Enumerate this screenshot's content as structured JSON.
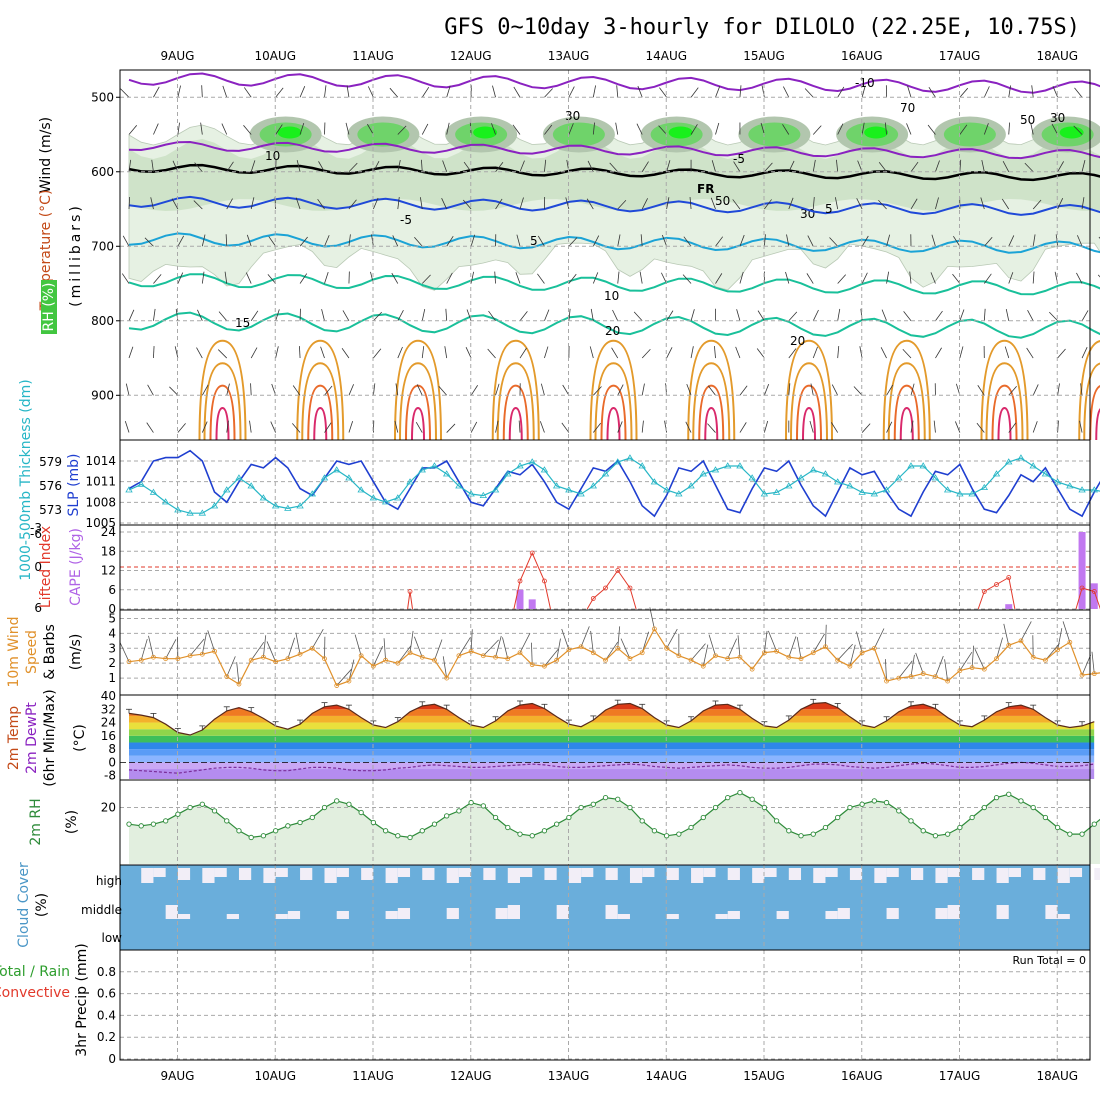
{
  "title": "GFS 0~10day 3-hourly for DILOLO (22.25E, 10.75S)",
  "date_labels": [
    "9AUG",
    "10AUG",
    "11AUG",
    "12AUG",
    "13AUG",
    "14AUG",
    "15AUG",
    "16AUG",
    "17AUG",
    "18AUG"
  ],
  "colors": {
    "rh_light": "#e6f1e3",
    "rh_mid": "#cfe3c9",
    "rh_dark": "#b2c6ae",
    "rh_green": "#6fd36a",
    "rh_bright": "#19f01c",
    "freezing": "#000000",
    "temp_purple": "#8a22c0",
    "temp_blue": "#1f49d8",
    "temp_cyan": "#1ba3d6",
    "temp_teal": "#19c09a",
    "temp_orange": "#e39a2b",
    "temp_red": "#d9296b",
    "slp": "#1f3fd0",
    "thickness": "#27b6c6",
    "cape": "#c178f0",
    "lifted": "#e2392b",
    "wind10": "#e0912b",
    "rh2m": "#2e8b3a",
    "cloud": "#6aaedb",
    "cloud_gap": "#f2eef7"
  },
  "chart_data": [
    {
      "panel": "upper-air",
      "type": "heatmap",
      "ylabel_parts": [
        "Wind (m/s)",
        "Temperature (°C)",
        "RH (%)",
        "(millibars)"
      ],
      "ylim": [
        960,
        450
      ],
      "yticks": [
        500,
        600,
        700,
        800,
        900
      ],
      "isotherm_labels": [
        "-10",
        "-5",
        "-5",
        "5",
        "5",
        "10",
        "15",
        "20",
        "20",
        "20"
      ],
      "freezing_label": "FR",
      "rh_contour_labels": [
        "10",
        "30",
        "30",
        "50",
        "50",
        "70",
        "30"
      ]
    },
    {
      "panel": "slp-thickness",
      "type": "line",
      "ylabel_left": "1000-500mb Thickness (dm)",
      "ylabel_right": "SLP (mb)",
      "thickness_ticks": [
        573,
        576,
        579
      ],
      "slp_ticks": [
        1005,
        1008,
        1011,
        1014
      ],
      "series": [
        {
          "name": "SLP (mb)",
          "values": [
            1010.0,
            1011.0,
            1014.0,
            1014.5,
            1014.5,
            1015.5,
            1014.0,
            1009.5,
            1008.0,
            1011.0,
            1013.5,
            1013.0,
            1014.5,
            1013.0,
            1010.0,
            1009.0,
            1011.5,
            1014.0,
            1013.5,
            1014.0,
            1011.0,
            1008.0,
            1007.0,
            1010.0,
            1013.0,
            1013.0,
            1014.0,
            1011.0,
            1008.0,
            1007.5,
            1010.0,
            1012.5,
            1012.0,
            1013.5,
            1011.0,
            1008.0,
            1007.0,
            1010.0,
            1013.0,
            1012.5,
            1014.0,
            1011.0,
            1007.5,
            1006.0,
            1009.0,
            1013.0,
            1012.5,
            1014.0,
            1010.5,
            1007.0,
            1006.5,
            1010.0,
            1013.0,
            1012.5,
            1014.0,
            1010.5,
            1007.5,
            1006.0,
            1009.5,
            1013.0,
            1012.0,
            1012.5,
            1009.5,
            1007.0,
            1006.0,
            1009.5,
            1012.5,
            1012.0,
            1013.5,
            1010.0,
            1007.0,
            1006.5,
            1009.0,
            1012.0,
            1011.0,
            1013.0,
            1010.0,
            1007.0,
            1006.0,
            1009.5,
            1012.5
          ]
        },
        {
          "name": "1000-500mb Thickness (dm)",
          "values": [
            575.5,
            576.2,
            575.2,
            574.0,
            573.0,
            572.6,
            572.6,
            573.5,
            575.5,
            577.0,
            576.0,
            574.5,
            573.5,
            573.2,
            573.5,
            575.0,
            577.0,
            578.0,
            577.0,
            575.5,
            574.5,
            574.0,
            574.5,
            576.5,
            578.0,
            578.5,
            577.5,
            576.0,
            575.0,
            574.8,
            575.5,
            577.5,
            578.5,
            579.0,
            578.0,
            576.0,
            575.5,
            575.0,
            576.0,
            577.5,
            579.0,
            579.5,
            578.5,
            576.5,
            575.5,
            575.0,
            576.0,
            577.5,
            578.0,
            578.5,
            578.5,
            577.0,
            575.0,
            575.2,
            576.0,
            577.0,
            578.0,
            577.5,
            576.5,
            576.0,
            575.2,
            575.0,
            575.5,
            577.0,
            578.5,
            578.5,
            577.0,
            575.5,
            575.0,
            575.0,
            575.8,
            577.5,
            579.0,
            579.5,
            578.5,
            577.5,
            576.5,
            576.0,
            575.5,
            575.5,
            575.2
          ]
        }
      ]
    },
    {
      "panel": "cape-lifted-index",
      "type": "bar",
      "ylabel_left": "Lifted Index",
      "ylabel_right": "CAPE (J/kg)",
      "li_ticks": [
        "6",
        "0",
        "-6",
        "-3"
      ],
      "cape_ticks": [
        0,
        6,
        12,
        18,
        24
      ],
      "cape_bars": [
        [
          32,
          6.0
        ],
        [
          33,
          3.0
        ],
        [
          72,
          1.5
        ],
        [
          78,
          24.0
        ],
        [
          79,
          8.0
        ]
      ],
      "li_segments": [
        [
          [
            22.8,
            6.0
          ],
          [
            23.0,
            3.5
          ],
          [
            23.2,
            6.0
          ]
        ],
        [
          [
            31.5,
            6.0
          ],
          [
            32,
            2.0
          ],
          [
            33,
            -2.0
          ],
          [
            34,
            2.0
          ],
          [
            34.5,
            6.0
          ]
        ],
        [
          [
            37.5,
            6.0
          ],
          [
            38,
            4.5
          ],
          [
            39,
            3.0
          ],
          [
            40,
            0.5
          ],
          [
            41,
            3.0
          ],
          [
            41.5,
            6.0
          ]
        ],
        [
          [
            69.5,
            6.0
          ],
          [
            70,
            3.5
          ],
          [
            71,
            2.5
          ],
          [
            72,
            1.5
          ],
          [
            72.5,
            6.0
          ]
        ],
        [
          [
            77.5,
            6.0
          ],
          [
            78,
            3.0
          ],
          [
            79,
            3.5
          ],
          [
            79.5,
            6.0
          ]
        ]
      ],
      "threshold": 0
    },
    {
      "panel": "wind-10m",
      "type": "line",
      "ylabel": "10m Wind Speed & Barbs (m/s)",
      "yticks": [
        1,
        2,
        3,
        4,
        5
      ],
      "ylim": [
        0,
        5.5
      ],
      "series": [
        {
          "name": "10m Wind Speed",
          "values": [
            2.1,
            2.2,
            2.4,
            2.3,
            2.3,
            2.5,
            2.6,
            2.8,
            1.1,
            0.6,
            2.2,
            2.4,
            2.1,
            2.3,
            2.6,
            3.0,
            2.3,
            0.5,
            0.8,
            2.5,
            1.8,
            2.2,
            2.0,
            2.7,
            2.4,
            2.2,
            1.0,
            2.5,
            2.8,
            2.5,
            2.4,
            2.3,
            2.7,
            1.9,
            1.8,
            2.2,
            2.9,
            3.1,
            2.7,
            2.2,
            3.0,
            2.3,
            2.7,
            4.3,
            3.0,
            2.5,
            2.2,
            1.8,
            2.5,
            2.3,
            2.4,
            1.6,
            2.7,
            2.8,
            2.4,
            2.3,
            2.7,
            3.1,
            2.2,
            1.8,
            2.7,
            3.0,
            0.8,
            1.0,
            1.1,
            1.3,
            1.1,
            0.8,
            1.5,
            1.7,
            1.6,
            2.3,
            3.2,
            3.5,
            2.4,
            2.2,
            2.9,
            3.4,
            1.2,
            1.3,
            1.4,
            1.0,
            2.1,
            3.7
          ]
        }
      ]
    },
    {
      "panel": "temperature-2m",
      "type": "area",
      "ylabel_parts": [
        "2m Temp",
        "2m DewPt",
        "(6hr Min/Max)",
        "(°C)"
      ],
      "yticks": [
        -8,
        0,
        8,
        16,
        24,
        32,
        40
      ],
      "tick_labels": [
        "-8",
        "0",
        "8",
        "16",
        "24",
        "32",
        "40"
      ],
      "ylim": [
        -10,
        40
      ],
      "series": [
        {
          "name": "2m Temp",
          "values": [
            29.5,
            28.5,
            27.0,
            23.0,
            18.0,
            16.5,
            19.5,
            26.0,
            31.0,
            33.0,
            30.5,
            26.5,
            22.0,
            20.0,
            23.0,
            29.5,
            33.5,
            34.5,
            32.0,
            27.0,
            22.5,
            21.0,
            24.5,
            30.5,
            34.0,
            35.0,
            32.0,
            27.0,
            22.5,
            21.0,
            25.0,
            31.0,
            34.5,
            35.5,
            32.5,
            27.5,
            23.0,
            21.5,
            25.5,
            31.5,
            35.0,
            35.5,
            32.5,
            27.0,
            22.5,
            21.0,
            25.0,
            31.0,
            34.5,
            35.0,
            32.0,
            26.5,
            22.0,
            21.0,
            25.5,
            32.0,
            35.5,
            36.0,
            33.0,
            27.5,
            22.5,
            21.0,
            25.0,
            30.5,
            34.0,
            35.0,
            32.5,
            27.0,
            22.5,
            21.5,
            25.5,
            30.5,
            33.5,
            34.5,
            32.0,
            27.0,
            22.5,
            21.0,
            22.0,
            24.5
          ]
        },
        {
          "name": "2m DewPt",
          "values": [
            -4.5,
            -5.0,
            -5.5,
            -6.0,
            -6.5,
            -5.5,
            -4.5,
            -3.5,
            -3.0,
            -3.0,
            -3.5,
            -4.5,
            -5.0,
            -5.0,
            -4.0,
            -3.0,
            -3.0,
            -3.5,
            -4.5,
            -5.0,
            -5.0,
            -4.5,
            -3.5,
            -3.0,
            -2.0,
            -1.5,
            -2.0,
            -2.5,
            -3.0,
            -3.0,
            -2.5,
            -2.0,
            -1.5,
            -1.0,
            -1.5,
            -2.5,
            -3.0,
            -3.0,
            -2.5,
            -2.0,
            -1.5,
            -1.0,
            -1.5,
            -2.5,
            -3.0,
            -3.5,
            -3.0,
            -2.5,
            -2.0,
            -1.5,
            -2.0,
            -3.0,
            -3.5,
            -3.5,
            -3.0,
            -2.0,
            -1.0,
            -1.0,
            -1.5,
            -2.5,
            -3.0,
            -3.5,
            -3.0,
            -2.0,
            -1.0,
            -0.5,
            -1.0,
            -2.0,
            -3.0,
            -3.0,
            -2.5,
            -1.5,
            -0.5,
            0.0,
            -0.5,
            -1.5,
            -2.5,
            -2.5,
            -2.0,
            -1.0
          ]
        }
      ]
    },
    {
      "panel": "rh-2m",
      "type": "line",
      "ylabel_parts": [
        "2m RH",
        "(%)"
      ],
      "yticks": [
        20
      ],
      "ylim": [
        -14,
        36
      ],
      "series": [
        {
          "name": "2m RH",
          "values": [
            10,
            9,
            10,
            12,
            16,
            20,
            22,
            18,
            12,
            6,
            2,
            3,
            6,
            9,
            11,
            14,
            20,
            24,
            22,
            17,
            11,
            6,
            3,
            2,
            6,
            10,
            15,
            18,
            23,
            21,
            14,
            8,
            4,
            3,
            6,
            10,
            14,
            20,
            22,
            26,
            25,
            20,
            12,
            6,
            3,
            4,
            8,
            14,
            20,
            26,
            29,
            25,
            20,
            12,
            6,
            3,
            4,
            8,
            14,
            20,
            22,
            24,
            23,
            18,
            12,
            6,
            3,
            4,
            8,
            14,
            20,
            26,
            28,
            24,
            20,
            14,
            8,
            4,
            4,
            10,
            16,
            20,
            23,
            22
          ]
        }
      ]
    },
    {
      "panel": "cloud-cover",
      "type": "area",
      "ylabel_parts": [
        "Cloud Cover",
        "(%)"
      ],
      "levels": [
        "high",
        "middle",
        "low"
      ]
    },
    {
      "panel": "precip",
      "type": "bar",
      "ylabel_parts": [
        "Total / Rain",
        "Convective",
        "3hr Precip (mm)"
      ],
      "yticks": [
        "0",
        "0.2",
        "0.4",
        "0.6",
        "0.8"
      ],
      "ylim": [
        0,
        1
      ],
      "run_total_label": "Run Total = 0",
      "values": []
    }
  ]
}
